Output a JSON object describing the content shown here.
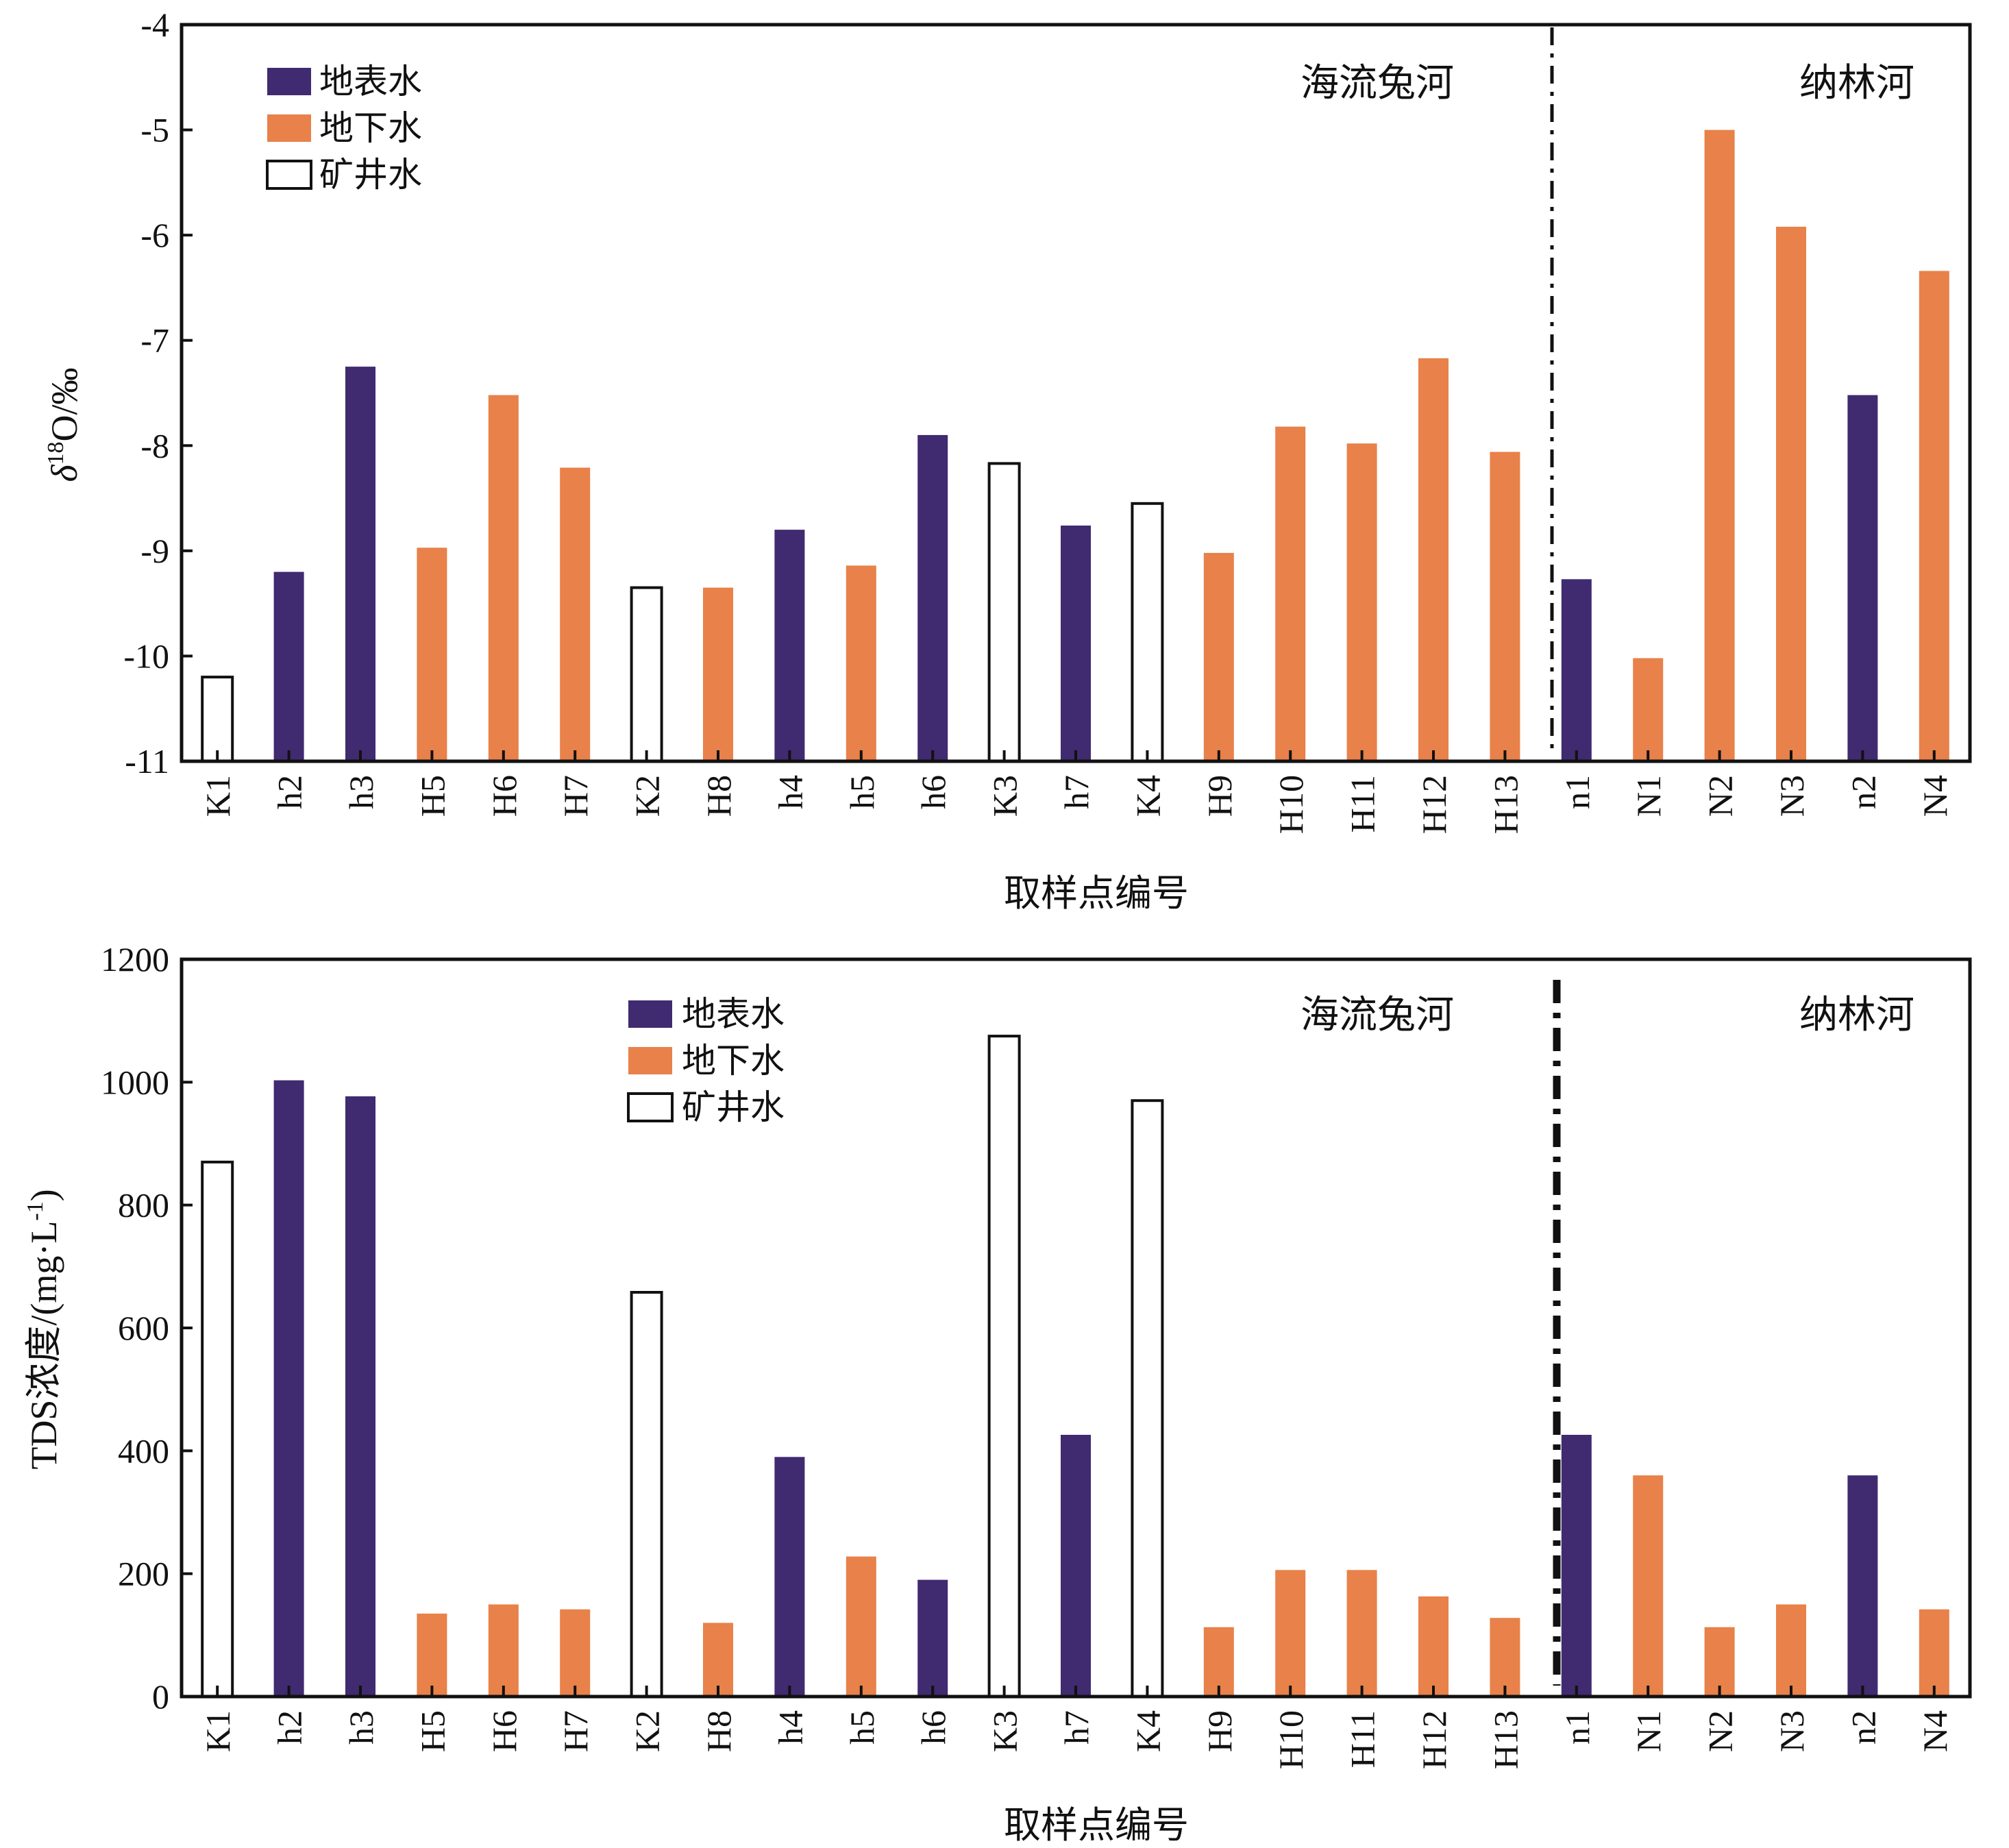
{
  "colors": {
    "surface": "#402a70",
    "ground": "#e8814a",
    "mine": "#ffffff",
    "outline": "#111111"
  },
  "legend": {
    "surface_label": "地表水",
    "ground_label": "地下水",
    "mine_label": "矿井水"
  },
  "regions": {
    "left": "海流兔河",
    "right": "纳林河"
  },
  "chart_data": [
    {
      "type": "bar",
      "ylabel_symbol": "δ",
      "ylabel_sup": "18",
      "ylabel_rest": "O/‰",
      "xlabel": "取样点编号",
      "ylim": [
        -11,
        -4
      ],
      "yticks": [
        -4,
        -5,
        -6,
        -7,
        -8,
        -9,
        -10,
        -11
      ],
      "categories": [
        "K1",
        "h2",
        "h3",
        "H5",
        "H6",
        "H7",
        "K2",
        "H8",
        "h4",
        "h5",
        "h6",
        "K3",
        "h7",
        "K4",
        "H9",
        "H10",
        "H11",
        "H12",
        "H13",
        "n1",
        "N1",
        "N2",
        "N3",
        "n2",
        "N4"
      ],
      "water_type": [
        "mine",
        "surface",
        "surface",
        "ground",
        "ground",
        "ground",
        "mine",
        "ground",
        "surface",
        "ground",
        "surface",
        "mine",
        "surface",
        "mine",
        "ground",
        "ground",
        "ground",
        "ground",
        "ground",
        "surface",
        "ground",
        "ground",
        "ground",
        "surface",
        "ground"
      ],
      "values": [
        -10.2,
        -9.2,
        -7.25,
        -8.97,
        -7.52,
        -8.21,
        -9.35,
        -9.35,
        -8.8,
        -9.14,
        -7.9,
        -8.17,
        -8.76,
        -8.55,
        -9.02,
        -7.82,
        -7.98,
        -7.17,
        -8.06,
        -9.27,
        -10.02,
        -5.0,
        -5.92,
        -7.52,
        -6.34
      ],
      "divider_after_index": 18
    },
    {
      "type": "bar",
      "ylabel": "TDS浓度/(mg·L",
      "ylabel_sup": "-1",
      "ylabel_end": ")",
      "xlabel": "取样点编号",
      "ylim": [
        0,
        1200
      ],
      "yticks": [
        0,
        200,
        400,
        600,
        800,
        1000,
        1200
      ],
      "categories": [
        "K1",
        "h2",
        "h3",
        "H5",
        "H6",
        "H7",
        "K2",
        "H8",
        "h4",
        "h5",
        "h6",
        "K3",
        "h7",
        "K4",
        "H9",
        "H10",
        "H11",
        "H12",
        "H13",
        "n1",
        "N1",
        "N2",
        "N3",
        "n2",
        "N4"
      ],
      "water_type": [
        "mine",
        "surface",
        "surface",
        "ground",
        "ground",
        "ground",
        "mine",
        "ground",
        "surface",
        "ground",
        "surface",
        "mine",
        "surface",
        "mine",
        "ground",
        "ground",
        "ground",
        "ground",
        "ground",
        "surface",
        "ground",
        "ground",
        "ground",
        "surface",
        "ground"
      ],
      "values": [
        870,
        1003,
        977,
        135,
        150,
        142,
        658,
        120,
        390,
        228,
        190,
        1075,
        426,
        970,
        113,
        206,
        206,
        163,
        128,
        426,
        360,
        113,
        150,
        360,
        142
      ],
      "divider_after_index": 18
    }
  ]
}
